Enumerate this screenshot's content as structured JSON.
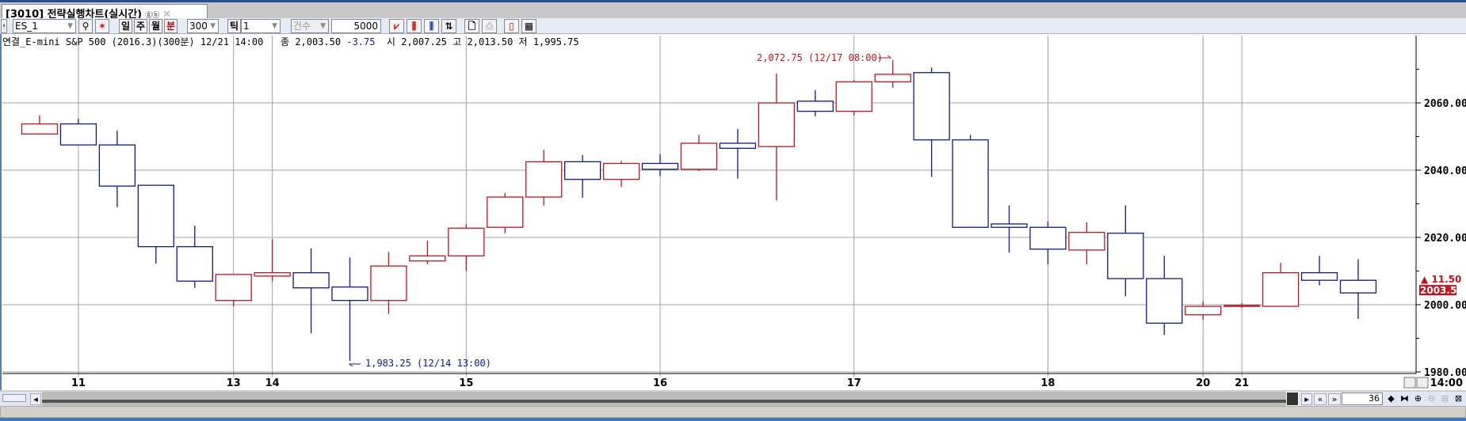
{
  "window": {
    "tab_title": "[3010] 전략실행차트(실시간)",
    "tab_icon": "link-icon",
    "tab_icon_text": "ⓖⓑ",
    "close": "✕"
  },
  "toolbar": {
    "symbol": "ES_1",
    "search": "🔍",
    "day": "일",
    "week": "주",
    "month": "월",
    "minute": "분",
    "interval": "300",
    "tick": "틱",
    "tick_value": "1",
    "count_type": "건수",
    "count_value": "5000"
  },
  "info": {
    "name": "연결_E-mini S&P 500 (2016.3)(300분) 12/21 14:00",
    "close_label": "종",
    "close": "2,003.50",
    "change": "-3.75",
    "open_label": "시",
    "open": "2,007.25",
    "high_label": "고",
    "high": "2,013.50",
    "low_label": "저",
    "low": "1,995.75"
  },
  "colors": {
    "up": "#c0141e",
    "down": "#0c1a8c",
    "grid": "#a0a0a0"
  },
  "chart_data": {
    "type": "candlestick",
    "ylim": [
      1980,
      2080
    ],
    "yticks": [
      1980,
      2000,
      2020,
      2040,
      2060
    ],
    "ytick_labels": [
      "1980.00",
      "2000.00",
      "2020.00",
      "2040.00",
      "2060.00"
    ],
    "xtick_labels": [
      {
        "label": "11",
        "index": 1
      },
      {
        "label": "13",
        "index": 5
      },
      {
        "label": "14",
        "index": 6
      },
      {
        "label": "15",
        "index": 11
      },
      {
        "label": "16",
        "index": 16
      },
      {
        "label": "17",
        "index": 21
      },
      {
        "label": "18",
        "index": 26
      },
      {
        "label": "20",
        "index": 30
      },
      {
        "label": "21",
        "index": 31
      }
    ],
    "ohlc": [
      [
        2050.75,
        2056.25,
        2050.5,
        2053.75
      ],
      [
        2053.75,
        2055.25,
        2047.5,
        2047.5
      ],
      [
        2047.5,
        2051.75,
        2029,
        2035.25
      ],
      [
        2035.5,
        2035.5,
        2012.25,
        2017.25
      ],
      [
        2017.25,
        2023.5,
        2005,
        2007
      ],
      [
        2001.25,
        2009,
        1999.5,
        2009
      ],
      [
        2008.5,
        2019.5,
        2007,
        2009.5
      ],
      [
        2009.5,
        2016.75,
        1991.5,
        2005
      ],
      [
        2005.25,
        2014,
        1983.25,
        2001.25
      ],
      [
        2001.25,
        2015.75,
        1997.25,
        2011.5
      ],
      [
        2013,
        2019,
        2012,
        2014.5
      ],
      [
        2014.5,
        2024,
        2010,
        2022.75
      ],
      [
        2023,
        2033.25,
        2021.25,
        2032
      ],
      [
        2032,
        2046,
        2029.5,
        2042.5
      ],
      [
        2042.5,
        2044.5,
        2031.75,
        2037.25
      ],
      [
        2037.25,
        2042.75,
        2035,
        2042
      ],
      [
        2042,
        2044.75,
        2038.25,
        2040.25
      ],
      [
        2040.25,
        2050.5,
        2039.75,
        2048
      ],
      [
        2048,
        2052.25,
        2037.5,
        2046.5
      ],
      [
        2047,
        2068.75,
        2031,
        2060
      ],
      [
        2060.5,
        2063.75,
        2056,
        2057.5
      ],
      [
        2057.5,
        2066.75,
        2056.25,
        2066.25
      ],
      [
        2066.25,
        2072.75,
        2064.5,
        2068.5
      ],
      [
        2069,
        2070.5,
        2038,
        2049
      ],
      [
        2049,
        2050.5,
        2023,
        2023
      ],
      [
        2024,
        2029.5,
        2015.5,
        2023
      ],
      [
        2023,
        2024.75,
        2012,
        2016.5
      ],
      [
        2016.25,
        2024.5,
        2012,
        2021.5
      ],
      [
        2021.25,
        2029.5,
        2002.5,
        2007.75
      ],
      [
        2007.75,
        2014.5,
        1991,
        1994.5
      ],
      [
        1997,
        2001,
        1995.5,
        1999.5
      ],
      [
        1999.5,
        2000.5,
        1999,
        1999.75
      ],
      [
        1999.5,
        2012.5,
        1999.5,
        2009.5
      ],
      [
        2009.5,
        2014.5,
        2005.75,
        2007.25
      ],
      [
        2007.25,
        2013.5,
        1995.75,
        2003.5
      ]
    ],
    "annotations": {
      "high_label": "2,072.75 (12/17 08:00)",
      "low_label": "1,983.25 (12/14 13:00)"
    },
    "last_price": "2003.50",
    "last_change": "▲ 11.50"
  },
  "axis_time": "14:00",
  "scrollbar": {
    "visible_count": "36"
  }
}
